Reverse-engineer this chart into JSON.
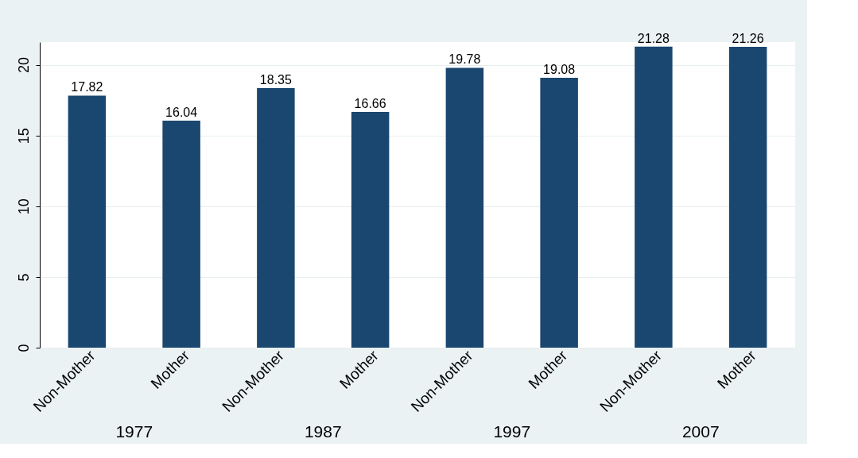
{
  "chart_data": {
    "type": "bar",
    "categories": [
      "1977",
      "1987",
      "1997",
      "2007"
    ],
    "series": [
      {
        "name": "Non-Mother",
        "color": "#1a476f",
        "values": [
          17.82,
          18.35,
          19.78,
          21.28
        ]
      },
      {
        "name": "Mother",
        "color": "#1a476f",
        "values": [
          16.04,
          16.66,
          19.08,
          21.26
        ]
      }
    ],
    "ylim": [
      0,
      21.6
    ],
    "yticks": [
      0,
      5,
      10,
      15,
      20
    ],
    "grid": "y",
    "data_labels": true
  }
}
